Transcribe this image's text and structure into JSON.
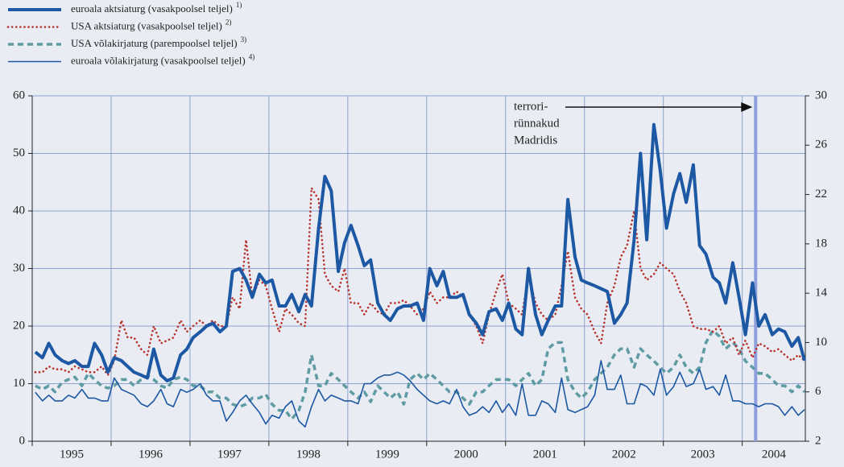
{
  "chart_data": {
    "type": "line",
    "x": [
      1995.04,
      1995.13,
      1995.21,
      1995.29,
      1995.38,
      1995.46,
      1995.54,
      1995.63,
      1995.71,
      1995.79,
      1995.88,
      1995.96,
      1996.04,
      1996.13,
      1996.21,
      1996.29,
      1996.38,
      1996.46,
      1996.54,
      1996.63,
      1996.71,
      1996.79,
      1996.88,
      1996.96,
      1997.04,
      1997.13,
      1997.21,
      1997.29,
      1997.38,
      1997.46,
      1997.54,
      1997.63,
      1997.71,
      1997.79,
      1997.88,
      1997.96,
      1998.04,
      1998.13,
      1998.21,
      1998.29,
      1998.38,
      1998.46,
      1998.54,
      1998.63,
      1998.71,
      1998.79,
      1998.88,
      1998.96,
      1999.04,
      1999.13,
      1999.21,
      1999.29,
      1999.38,
      1999.46,
      1999.54,
      1999.63,
      1999.71,
      1999.79,
      1999.88,
      1999.96,
      2000.04,
      2000.13,
      2000.21,
      2000.29,
      2000.38,
      2000.46,
      2000.54,
      2000.63,
      2000.71,
      2000.79,
      2000.88,
      2000.96,
      2001.04,
      2001.13,
      2001.21,
      2001.29,
      2001.38,
      2001.46,
      2001.54,
      2001.63,
      2001.71,
      2001.79,
      2001.88,
      2001.96,
      2002.04,
      2002.13,
      2002.21,
      2002.29,
      2002.38,
      2002.46,
      2002.54,
      2002.63,
      2002.71,
      2002.79,
      2002.88,
      2002.96,
      2003.04,
      2003.13,
      2003.21,
      2003.29,
      2003.38,
      2003.46,
      2003.54,
      2003.63,
      2003.71,
      2003.79,
      2003.88,
      2003.96,
      2004.04,
      2004.13,
      2004.21,
      2004.29,
      2004.38,
      2004.46,
      2004.54,
      2004.63,
      2004.71,
      2004.79
    ],
    "series": [
      {
        "name": "euroala aktsiaturg (vasakpoolsel teljel)",
        "note": "1)",
        "color": "#1c58a3",
        "style": "thick",
        "axis": "y",
        "values": [
          15.5,
          14.5,
          17,
          15,
          14,
          13.5,
          14,
          13,
          13,
          17,
          15,
          12,
          14.5,
          14,
          13,
          12,
          11.5,
          11,
          16,
          11.5,
          10.5,
          11,
          15,
          16,
          18,
          19,
          20,
          20.5,
          19,
          20,
          29.5,
          30,
          28,
          25,
          29,
          27.5,
          28,
          23.5,
          23.5,
          25.5,
          22.5,
          25.5,
          23.5,
          37,
          46,
          43.5,
          29.5,
          34.5,
          37.5,
          34,
          30.5,
          31.5,
          24,
          22,
          21,
          23,
          23.5,
          23.5,
          24,
          21,
          30,
          27,
          29.5,
          25,
          25,
          25.5,
          22,
          20.5,
          18.5,
          22.5,
          23,
          21,
          24,
          19.5,
          18.5,
          30,
          22,
          18.5,
          21,
          23.5,
          23.5,
          42,
          32,
          28,
          27.5,
          27,
          26.5,
          26,
          20.5,
          22,
          24,
          35,
          50,
          35,
          55,
          47,
          37,
          43,
          46.5,
          41.5,
          48,
          34,
          32.5,
          28.5,
          27.5,
          24,
          31,
          25,
          18.5,
          27.5,
          20,
          22,
          18.5,
          19.5,
          19,
          16.5,
          18,
          14
        ]
      },
      {
        "name": "USA aktsiaturg (vasakpoolsel teljel)",
        "note": "2)",
        "color": "#b8332b",
        "style": "dotted",
        "axis": "y",
        "values": [
          12,
          12,
          13,
          12.5,
          12.5,
          12,
          13,
          12.5,
          12,
          12,
          13,
          11.5,
          14,
          21,
          18,
          18,
          16,
          15,
          20,
          17,
          17.5,
          18,
          21,
          19,
          20,
          21,
          20,
          21,
          20,
          20,
          25,
          23,
          35,
          25,
          28,
          27,
          23,
          19,
          23,
          22,
          20.5,
          20,
          44,
          42,
          29,
          27,
          26,
          30,
          24,
          24,
          22,
          24,
          22.5,
          22,
          24,
          24,
          24.5,
          23.5,
          22,
          23,
          26,
          24,
          25,
          25,
          26,
          25,
          22,
          20,
          17,
          22,
          26,
          29,
          24,
          23,
          22,
          29,
          24,
          22,
          21,
          22,
          27,
          33,
          25,
          23,
          22,
          19,
          17,
          24,
          27,
          32,
          34,
          40,
          30,
          28,
          29,
          31,
          30,
          29,
          26,
          24,
          20,
          19.5,
          19.5,
          19,
          20,
          17,
          18,
          15,
          17.5,
          14.5,
          17,
          16.5,
          15.5,
          16,
          15,
          14,
          15,
          14
        ]
      },
      {
        "name": "USA võlakirjaturg (parempoolsel teljel)",
        "note": "3)",
        "color": "#5f9ba3",
        "style": "dashed",
        "axis": "y2",
        "values": [
          6.5,
          6.2,
          6.5,
          6,
          6.8,
          7,
          7.2,
          6.5,
          7.5,
          7,
          6.5,
          6.3,
          6.5,
          7,
          7,
          6.5,
          7,
          7.3,
          7,
          6.5,
          6.3,
          7,
          7.2,
          7,
          6.5,
          6.5,
          6,
          6,
          5.5,
          5.5,
          5,
          4.8,
          5,
          5.5,
          5.5,
          5.8,
          5,
          4.5,
          4.5,
          3.8,
          4.5,
          6,
          9,
          6.5,
          6.5,
          7.5,
          7,
          6.5,
          6,
          5.5,
          6,
          5.2,
          6.5,
          6,
          5.5,
          6,
          5,
          7,
          7.5,
          7,
          7.5,
          7,
          6.5,
          6,
          6,
          5.5,
          5,
          6,
          6,
          6.5,
          7,
          7,
          7,
          6.5,
          7,
          7.5,
          6.5,
          7,
          9.5,
          10,
          10,
          7,
          6,
          5.5,
          6,
          7,
          7.5,
          8,
          9,
          9.5,
          9.5,
          8,
          9.5,
          9,
          8.5,
          8,
          7.5,
          8,
          9,
          8,
          7.5,
          8,
          10,
          11,
          10.5,
          9.5,
          10,
          9.5,
          8.5,
          8,
          7.5,
          7.5,
          7,
          6.5,
          6.5,
          6,
          6.5,
          6
        ]
      },
      {
        "name": "euroala võlakirjaturg (vasakpoolsel teljel)",
        "note": "4)",
        "color": "#1c58a3",
        "style": "thin",
        "axis": "y",
        "values": [
          8.5,
          7,
          8,
          7,
          7,
          8,
          7.5,
          9,
          7.5,
          7.5,
          7,
          7,
          11,
          9,
          8.5,
          8,
          6.5,
          6,
          7,
          9,
          6.5,
          6,
          9,
          8.5,
          9,
          10,
          8,
          7,
          7,
          3.5,
          5,
          7,
          8,
          6.5,
          5,
          3,
          4.5,
          4,
          6,
          7,
          3.5,
          2.5,
          6,
          9,
          7,
          8,
          7.5,
          7,
          7,
          6.5,
          10,
          10,
          11,
          11.5,
          11.5,
          12,
          11.5,
          10.5,
          9,
          8,
          7,
          6.5,
          7,
          6.5,
          9,
          6,
          4.5,
          5,
          6,
          5,
          7,
          5,
          6.5,
          4.5,
          10,
          4.5,
          4.5,
          7,
          6.5,
          5,
          11,
          5.5,
          5,
          5.5,
          6,
          8,
          14,
          9,
          9,
          11.5,
          6.5,
          6.5,
          10,
          9.5,
          8,
          12.5,
          8,
          9.5,
          12,
          9.5,
          10,
          12.5,
          9,
          9.5,
          8,
          11.5,
          7,
          7,
          6.5,
          6.5,
          6,
          6.5,
          6.5,
          6,
          4.5,
          6,
          4.5,
          5.5
        ]
      }
    ],
    "xlim": [
      1995,
      2004.8
    ],
    "xgrid": [
      1995,
      1996,
      1997,
      1998,
      1999,
      2000,
      2001,
      2002,
      2003,
      2004
    ],
    "xticks": [
      {
        "value": 1995.5,
        "label": "1995"
      },
      {
        "value": 1996.5,
        "label": "1996"
      },
      {
        "value": 1997.5,
        "label": "1997"
      },
      {
        "value": 1998.5,
        "label": "1998"
      },
      {
        "value": 1999.5,
        "label": "1999"
      },
      {
        "value": 2000.5,
        "label": "2000"
      },
      {
        "value": 2001.5,
        "label": "2001"
      },
      {
        "value": 2002.5,
        "label": "2002"
      },
      {
        "value": 2003.5,
        "label": "2003"
      },
      {
        "value": 2004.4,
        "label": "2004"
      }
    ],
    "ylim": [
      0,
      60
    ],
    "yticks": [
      0,
      10,
      20,
      30,
      40,
      50,
      60
    ],
    "y2lim": [
      2,
      30
    ],
    "y2ticks": [
      2,
      6,
      10,
      14,
      18,
      22,
      26,
      30
    ],
    "grid": true,
    "annotation": {
      "lines": [
        "terrori-",
        "rünnakud",
        "Madridis"
      ],
      "x": 2004.17
    }
  }
}
